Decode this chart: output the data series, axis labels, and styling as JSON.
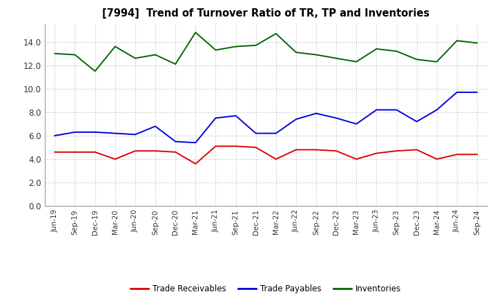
{
  "title": "[7994]  Trend of Turnover Ratio of TR, TP and Inventories",
  "x_labels": [
    "Jun-19",
    "Sep-19",
    "Dec-19",
    "Mar-20",
    "Jun-20",
    "Sep-20",
    "Dec-20",
    "Mar-21",
    "Jun-21",
    "Sep-21",
    "Dec-21",
    "Mar-22",
    "Jun-22",
    "Sep-22",
    "Dec-22",
    "Mar-23",
    "Jun-23",
    "Sep-23",
    "Dec-23",
    "Mar-24",
    "Jun-24",
    "Sep-24"
  ],
  "trade_receivables": [
    4.6,
    4.6,
    4.6,
    4.0,
    4.7,
    4.7,
    4.6,
    3.6,
    5.1,
    5.1,
    5.0,
    4.0,
    4.8,
    4.8,
    4.7,
    4.0,
    4.5,
    4.7,
    4.8,
    4.0,
    4.4,
    4.4
  ],
  "trade_payables": [
    6.0,
    6.3,
    6.3,
    6.2,
    6.1,
    6.8,
    5.5,
    5.4,
    7.5,
    7.7,
    6.2,
    6.2,
    7.4,
    7.9,
    7.5,
    7.0,
    8.2,
    8.2,
    7.2,
    8.2,
    9.7,
    9.7
  ],
  "inventories": [
    13.0,
    12.9,
    11.5,
    13.6,
    12.6,
    12.9,
    12.1,
    14.8,
    13.3,
    13.6,
    13.7,
    14.7,
    13.1,
    12.9,
    12.6,
    12.3,
    13.4,
    13.2,
    12.5,
    12.3,
    14.1,
    13.9
  ],
  "ylim": [
    0,
    15.5
  ],
  "yticks": [
    0.0,
    2.0,
    4.0,
    6.0,
    8.0,
    10.0,
    12.0,
    14.0
  ],
  "line_colors": {
    "trade_receivables": "#dd0000",
    "trade_payables": "#0000dd",
    "inventories": "#006600"
  },
  "legend_labels": [
    "Trade Receivables",
    "Trade Payables",
    "Inventories"
  ],
  "background_color": "#ffffff",
  "grid_color": "#bbbbbb"
}
